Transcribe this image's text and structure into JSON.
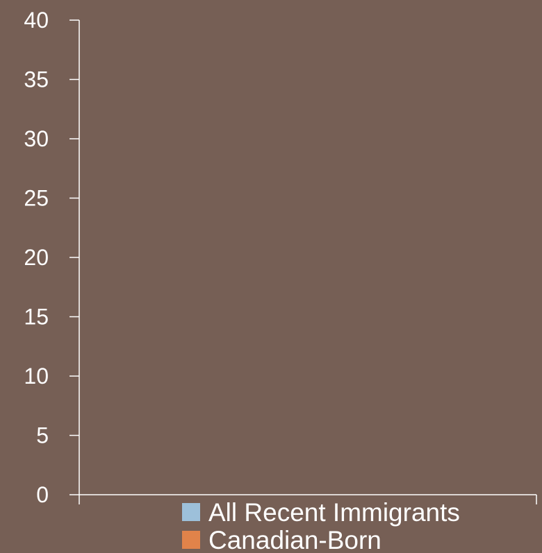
{
  "colors": {
    "background": "#765F55",
    "axis": "#FFFFFF",
    "text": "#FFFFFF"
  },
  "chart_data": {
    "type": "bar",
    "categories": [],
    "ylim": [
      0,
      40
    ],
    "y_ticks": [
      0,
      5,
      10,
      15,
      20,
      25,
      30,
      35,
      40
    ],
    "grid": false,
    "legend_position": "bottom",
    "series": [
      {
        "name": "All Recent Immigrants",
        "color": "#9DC0DA",
        "values": []
      },
      {
        "name": "Canadian-Born",
        "color": "#E1834A",
        "values": []
      }
    ]
  }
}
